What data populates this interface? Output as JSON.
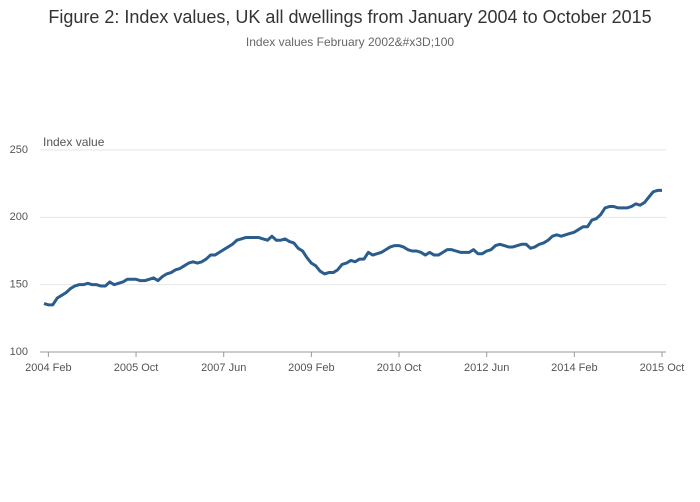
{
  "chart_data": {
    "type": "line",
    "title": "Figure 2: Index values, UK all dwellings from January 2004 to October 2015",
    "subtitle": "Index values February 2002&#x3D;100",
    "y_label": "Index value",
    "categories": [
      "2004 Jan",
      "2004 Feb",
      "2004 Mar",
      "2004 Apr",
      "2004 May",
      "2004 Jun",
      "2004 Jul",
      "2004 Aug",
      "2004 Sep",
      "2004 Oct",
      "2004 Nov",
      "2004 Dec",
      "2005 Jan",
      "2005 Feb",
      "2005 Mar",
      "2005 Apr",
      "2005 May",
      "2005 Jun",
      "2005 Jul",
      "2005 Aug",
      "2005 Sep",
      "2005 Oct",
      "2005 Nov",
      "2005 Dec",
      "2006 Jan",
      "2006 Feb",
      "2006 Mar",
      "2006 Apr",
      "2006 May",
      "2006 Jun",
      "2006 Jul",
      "2006 Aug",
      "2006 Sep",
      "2006 Oct",
      "2006 Nov",
      "2006 Dec",
      "2007 Jan",
      "2007 Feb",
      "2007 Mar",
      "2007 Apr",
      "2007 May",
      "2007 Jun",
      "2007 Jul",
      "2007 Aug",
      "2007 Sep",
      "2007 Oct",
      "2007 Nov",
      "2007 Dec",
      "2008 Jan",
      "2008 Feb",
      "2008 Mar",
      "2008 Apr",
      "2008 May",
      "2008 Jun",
      "2008 Jul",
      "2008 Aug",
      "2008 Sep",
      "2008 Oct",
      "2008 Nov",
      "2008 Dec",
      "2009 Jan",
      "2009 Feb",
      "2009 Mar",
      "2009 Apr",
      "2009 May",
      "2009 Jun",
      "2009 Jul",
      "2009 Aug",
      "2009 Sep",
      "2009 Oct",
      "2009 Nov",
      "2009 Dec",
      "2010 Jan",
      "2010 Feb",
      "2010 Mar",
      "2010 Apr",
      "2010 May",
      "2010 Jun",
      "2010 Jul",
      "2010 Aug",
      "2010 Sep",
      "2010 Oct",
      "2010 Nov",
      "2010 Dec",
      "2011 Jan",
      "2011 Feb",
      "2011 Mar",
      "2011 Apr",
      "2011 May",
      "2011 Jun",
      "2011 Jul",
      "2011 Aug",
      "2011 Sep",
      "2011 Oct",
      "2011 Nov",
      "2011 Dec",
      "2012 Jan",
      "2012 Feb",
      "2012 Mar",
      "2012 Apr",
      "2012 May",
      "2012 Jun",
      "2012 Jul",
      "2012 Aug",
      "2012 Sep",
      "2012 Oct",
      "2012 Nov",
      "2012 Dec",
      "2013 Jan",
      "2013 Feb",
      "2013 Mar",
      "2013 Apr",
      "2013 May",
      "2013 Jun",
      "2013 Jul",
      "2013 Aug",
      "2013 Sep",
      "2013 Oct",
      "2013 Nov",
      "2013 Dec",
      "2014 Jan",
      "2014 Feb",
      "2014 Mar",
      "2014 Apr",
      "2014 May",
      "2014 Jun",
      "2014 Jul",
      "2014 Aug",
      "2014 Sep",
      "2014 Oct",
      "2014 Nov",
      "2014 Dec",
      "2015 Jan",
      "2015 Feb",
      "2015 Mar",
      "2015 Apr",
      "2015 May",
      "2015 Jun",
      "2015 Jul",
      "2015 Aug",
      "2015 Sep",
      "2015 Oct"
    ],
    "values": [
      136,
      135,
      135,
      140,
      142,
      144,
      147,
      149,
      150,
      150,
      151,
      150,
      150,
      149,
      149,
      152,
      150,
      151,
      152,
      154,
      154,
      154,
      153,
      153,
      154,
      155,
      153,
      156,
      158,
      159,
      161,
      162,
      164,
      166,
      167,
      166,
      167,
      169,
      172,
      172,
      174,
      176,
      178,
      180,
      183,
      184,
      185,
      185,
      185,
      185,
      184,
      183,
      186,
      183,
      183,
      184,
      182,
      181,
      177,
      175,
      170,
      166,
      164,
      160,
      158,
      159,
      159,
      161,
      165,
      166,
      168,
      167,
      169,
      169,
      174,
      172,
      173,
      174,
      176,
      178,
      179,
      179,
      178,
      176,
      175,
      175,
      174,
      172,
      174,
      172,
      172,
      174,
      176,
      176,
      175,
      174,
      174,
      174,
      176,
      173,
      173,
      175,
      176,
      179,
      180,
      179,
      178,
      178,
      179,
      180,
      180,
      177,
      178,
      180,
      181,
      183,
      186,
      187,
      186,
      187,
      188,
      189,
      191,
      193,
      193,
      198,
      199,
      202,
      207,
      208,
      208,
      207,
      207,
      207,
      208,
      210,
      209,
      211,
      215,
      219,
      220,
      220
    ],
    "color": "#2a5d8c",
    "xticks": [
      "2004 Feb",
      "2005 Oct",
      "2007 Jun",
      "2009 Feb",
      "2010 Oct",
      "2012 Jun",
      "2014 Feb",
      "2015 Oct"
    ],
    "ylim": [
      100,
      250
    ],
    "yticks": [
      100,
      150,
      200,
      250
    ],
    "grid": true
  }
}
